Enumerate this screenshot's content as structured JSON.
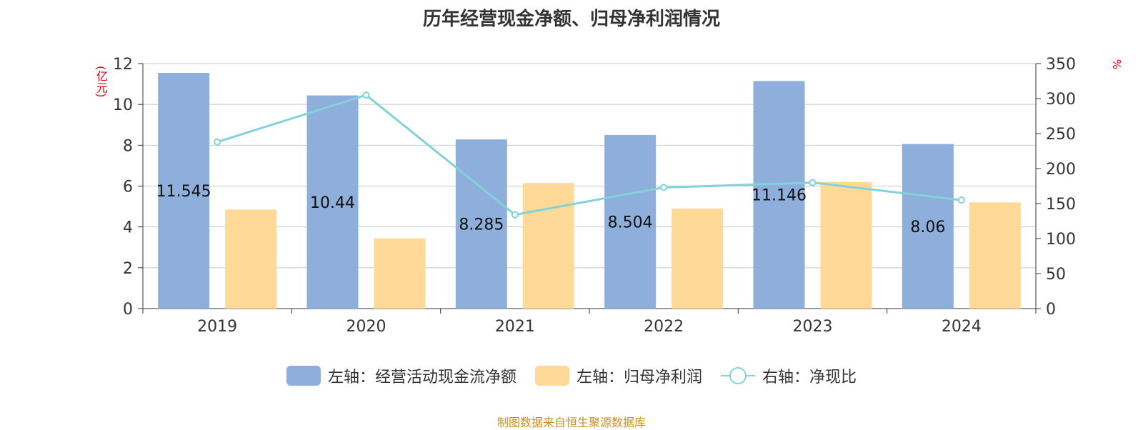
{
  "chart_data": {
    "type": "bar",
    "title": "历年经营现金净额、归母净利润情况",
    "left_unit": "(亿元)",
    "right_unit": "%",
    "categories": [
      "2019",
      "2020",
      "2021",
      "2022",
      "2023",
      "2024"
    ],
    "series": [
      {
        "name": "左轴：经营活动现金流净额",
        "axis": "left",
        "type": "bar",
        "color": "#8eaedb",
        "values": [
          11.545,
          10.44,
          8.285,
          8.504,
          11.146,
          8.06
        ],
        "labels": [
          "11.545",
          "10.44",
          "8.285",
          "8.504",
          "11.146",
          "8.06"
        ]
      },
      {
        "name": "左轴：归母净利润",
        "axis": "left",
        "type": "bar",
        "color": "#fed998",
        "values": [
          4.85,
          3.44,
          6.15,
          4.9,
          6.2,
          5.2
        ]
      },
      {
        "name": "右轴：净现比",
        "axis": "right",
        "type": "line",
        "color": "#82d3d8",
        "values": [
          238,
          305,
          134,
          173,
          180,
          155
        ]
      }
    ],
    "left_axis": {
      "min": 0,
      "max": 12,
      "ticks": [
        0,
        2,
        4,
        6,
        8,
        10,
        12
      ]
    },
    "right_axis": {
      "min": 0,
      "max": 350,
      "ticks": [
        0,
        50,
        100,
        150,
        200,
        250,
        300,
        350
      ]
    },
    "grid": true,
    "legend_position": "bottom",
    "source": "制图数据来自恒生聚源数据库"
  }
}
